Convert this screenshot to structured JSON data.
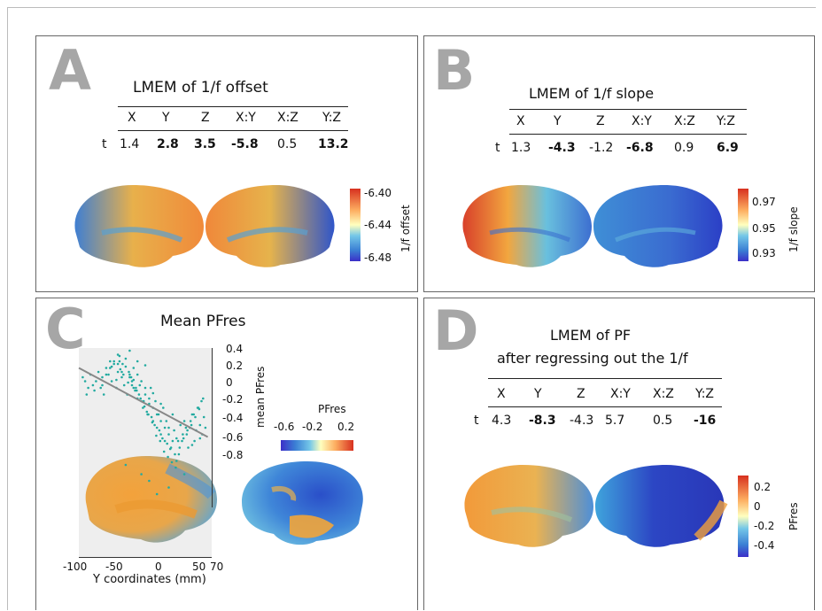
{
  "panels": {
    "A": {
      "letter": "A",
      "title": "LMEM of 1/f offset",
      "headers": [
        "X",
        "Y",
        "Z",
        "X:Y",
        "X:Z",
        "Y:Z"
      ],
      "row_label": "t",
      "values": [
        "1.4",
        "2.8",
        "3.5",
        "-5.8",
        "0.5",
        "13.2"
      ],
      "bold": [
        false,
        true,
        true,
        true,
        false,
        true
      ],
      "colorbar": {
        "title": "1/f offset",
        "ticks": [
          "-6.40",
          "-6.44",
          "-6.48"
        ]
      }
    },
    "B": {
      "letter": "B",
      "title": "LMEM of 1/f slope",
      "headers": [
        "X",
        "Y",
        "Z",
        "X:Y",
        "X:Z",
        "Y:Z"
      ],
      "row_label": "t",
      "values": [
        "1.3",
        "-4.3",
        "-1.2",
        "-6.8",
        "0.9",
        "6.9"
      ],
      "bold": [
        false,
        true,
        false,
        true,
        false,
        true
      ],
      "colorbar": {
        "title": "1/f slope",
        "ticks": [
          "0.97",
          "0.95",
          "0.93"
        ]
      }
    },
    "C": {
      "letter": "C",
      "title": "Mean PFres",
      "colorbar": {
        "title": "PFres",
        "ticks": [
          "-0.6",
          "-0.2",
          "0.2"
        ]
      },
      "ylabel": "mean PFres",
      "xlabel": "Y coordinates (mm)",
      "yticks": [
        "0.4",
        "0.2",
        "0",
        "-0.2",
        "-0.4",
        "-0.6",
        "-0.8"
      ],
      "xticks": [
        "-100",
        "-50",
        "0",
        "50",
        "70"
      ]
    },
    "D": {
      "letter": "D",
      "title_line1": "LMEM of PF",
      "title_line2": "after regressing out the 1/f",
      "headers": [
        "X",
        "Y",
        "Z",
        "X:Y",
        "X:Z",
        "Y:Z"
      ],
      "row_label": "t",
      "values": [
        "4.3",
        "-8.3",
        "-4.3",
        "5.7",
        "0.5",
        "-16"
      ],
      "bold": [
        false,
        true,
        false,
        false,
        false,
        true
      ],
      "colorbar": {
        "title": "PFres",
        "ticks": [
          "0.2",
          "0",
          "-0.2",
          "-0.4"
        ]
      }
    }
  },
  "chart_data": {
    "type": "scatter",
    "xlabel": "Y coordinates (mm)",
    "ylabel": "mean PFres",
    "xlim": [
      -100,
      70
    ],
    "ylim": [
      -0.8,
      0.4
    ],
    "trend_line": {
      "x": [
        -100,
        65
      ],
      "y": [
        0.25,
        -0.27
      ]
    },
    "points_x": [
      -95,
      -92,
      -90,
      -88,
      -85,
      -82,
      -80,
      -78,
      -75,
      -72,
      -70,
      -68,
      -65,
      -62,
      -60,
      -58,
      -55,
      -52,
      -50,
      -48,
      -45,
      -42,
      -40,
      -38,
      -35,
      -32,
      -30,
      -28,
      -25,
      -22,
      -20,
      -18,
      -15,
      -12,
      -10,
      -8,
      -5,
      -2,
      0,
      2,
      5,
      8,
      10,
      12,
      15,
      18,
      20,
      22,
      25,
      28,
      30,
      32,
      35,
      38,
      40,
      42,
      45,
      48,
      50,
      52,
      55,
      58,
      60,
      62,
      -60,
      -55,
      -50,
      -45,
      -40,
      -35,
      -30,
      -25,
      -20,
      -15,
      -10,
      -5,
      0,
      5,
      10,
      15,
      20,
      -70,
      -65,
      -58,
      -52,
      -47,
      -43,
      -37,
      -33,
      -27,
      -23,
      -17,
      -13,
      -7,
      -3,
      3,
      7,
      13,
      17,
      23,
      27,
      33,
      37,
      43,
      47,
      53,
      57,
      -48,
      -44,
      -36,
      -32,
      -26,
      -21,
      -16,
      -11,
      -6,
      -1,
      4,
      9,
      14,
      19,
      24,
      29,
      34,
      39,
      44,
      49,
      54,
      59,
      -30,
      -20,
      -10,
      0,
      -40,
      -50,
      -35,
      -25,
      -15,
      -5,
      5,
      15,
      25,
      35,
      45,
      55
    ],
    "points_y": [
      0.18,
      0.15,
      0.05,
      0.1,
      0.2,
      0.12,
      0.08,
      0.15,
      0.22,
      0.1,
      0.18,
      0.05,
      0.25,
      0.2,
      0.3,
      0.15,
      0.28,
      0.1,
      0.22,
      0.3,
      0.18,
      0.12,
      0.26,
      0.05,
      0.2,
      0.15,
      0.1,
      0.08,
      0.02,
      0.12,
      0.0,
      -0.05,
      0.05,
      -0.1,
      -0.02,
      0.1,
      -0.15,
      0.0,
      -0.2,
      -0.1,
      -0.25,
      -0.05,
      -0.3,
      -0.15,
      -0.2,
      -0.35,
      -0.1,
      -0.22,
      -0.28,
      -0.4,
      -0.18,
      -0.3,
      -0.15,
      -0.25,
      -0.35,
      -0.2,
      -0.1,
      -0.3,
      -0.22,
      -0.05,
      -0.18,
      -0.25,
      -0.12,
      -0.2,
      0.25,
      0.3,
      0.28,
      0.22,
      0.32,
      0.18,
      0.25,
      0.2,
      0.15,
      0.1,
      0.02,
      -0.05,
      -0.1,
      -0.15,
      -0.2,
      -0.25,
      -0.3,
      0.12,
      0.2,
      0.26,
      0.16,
      0.24,
      0.2,
      0.14,
      0.18,
      0.1,
      0.05,
      0.0,
      -0.08,
      -0.12,
      -0.18,
      -0.22,
      -0.28,
      -0.32,
      -0.36,
      -0.4,
      -0.3,
      -0.25,
      -0.2,
      -0.15,
      -0.1,
      -0.05,
      0.0,
      0.34,
      0.28,
      0.22,
      0.12,
      0.08,
      0.02,
      -0.04,
      -0.1,
      -0.16,
      -0.26,
      -0.3,
      -0.38,
      -0.42,
      -0.46,
      -0.5,
      -0.35,
      -0.28,
      -0.22,
      -0.18,
      -0.12,
      -0.06,
      0.02,
      0.16,
      -0.55,
      -0.6,
      -0.7,
      -0.48,
      0.35,
      0.38,
      0.3,
      0.27,
      0.06,
      -0.02,
      -0.65,
      -0.45,
      -0.55,
      -0.33,
      -0.28,
      -0.12
    ]
  }
}
